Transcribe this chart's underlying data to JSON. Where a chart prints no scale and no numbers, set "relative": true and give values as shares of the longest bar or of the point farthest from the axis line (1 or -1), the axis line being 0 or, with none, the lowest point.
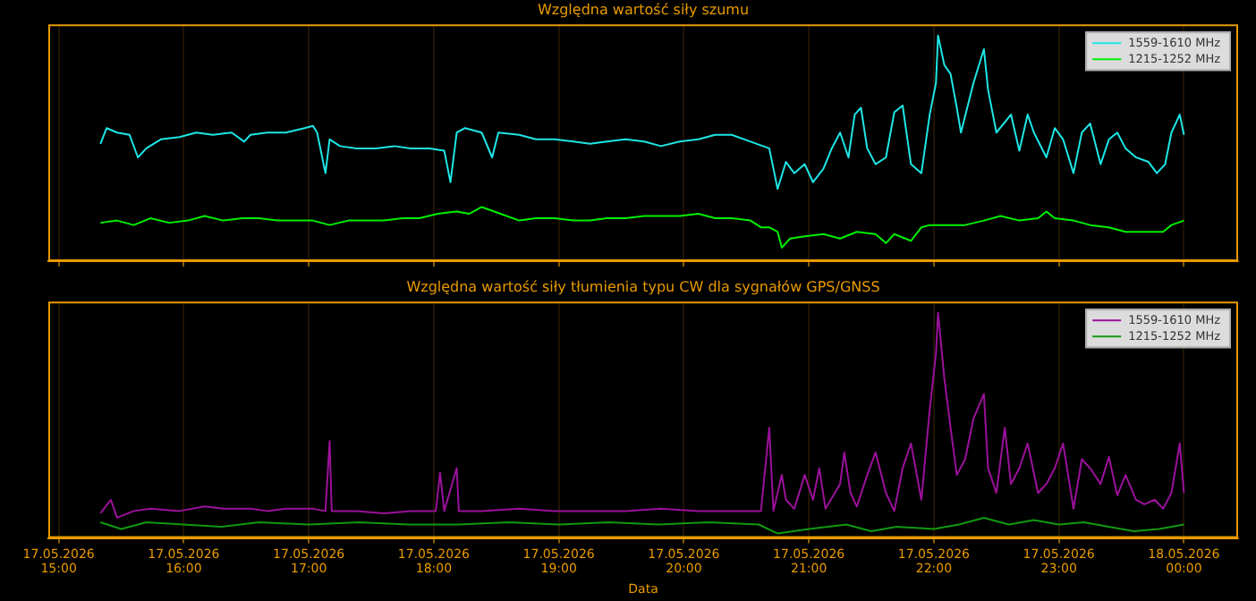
{
  "chart_data": [
    {
      "type": "line",
      "title": "Względna wartość siły szumu",
      "relative": true,
      "xlim": [
        "2026-05-17T14:55",
        "2026-05-18T00:26"
      ],
      "xticks": [
        {
          "value": "2026-05-17T15:00",
          "label": null
        },
        {
          "value": "2026-05-17T16:00",
          "label": null
        },
        {
          "value": "2026-05-17T17:00",
          "label": null
        },
        {
          "value": "2026-05-17T18:00",
          "label": null
        },
        {
          "value": "2026-05-17T19:00",
          "label": null
        },
        {
          "value": "2026-05-17T20:00",
          "label": null
        },
        {
          "value": "2026-05-17T21:00",
          "label": null
        },
        {
          "value": "2026-05-17T22:00",
          "label": null
        },
        {
          "value": "2026-05-17T23:00",
          "label": null
        },
        {
          "value": "2026-05-18T00:00",
          "label": null
        }
      ],
      "grid": "x",
      "legend": "top right",
      "tick_labels": false,
      "marker": "none",
      "series": [
        {
          "name": "1559-1610 MHz",
          "color": "#1ee6e6",
          "x": [
            "2026-05-17T15:20",
            "2026-05-17T15:23",
            "2026-05-17T15:28",
            "2026-05-17T15:34",
            "2026-05-17T15:38",
            "2026-05-17T15:42",
            "2026-05-17T15:49",
            "2026-05-17T15:58",
            "2026-05-17T16:06",
            "2026-05-17T16:14",
            "2026-05-17T16:23",
            "2026-05-17T16:29",
            "2026-05-17T16:32",
            "2026-05-17T16:40",
            "2026-05-17T16:49",
            "2026-05-17T16:58",
            "2026-05-17T17:02",
            "2026-05-17T17:04",
            "2026-05-17T17:08",
            "2026-05-17T17:10",
            "2026-05-17T17:15",
            "2026-05-17T17:23",
            "2026-05-17T17:32",
            "2026-05-17T17:41",
            "2026-05-17T17:49",
            "2026-05-17T17:58",
            "2026-05-17T18:05",
            "2026-05-17T18:08",
            "2026-05-17T18:11",
            "2026-05-17T18:15",
            "2026-05-17T18:23",
            "2026-05-17T18:28",
            "2026-05-17T18:31",
            "2026-05-17T18:41",
            "2026-05-17T18:49",
            "2026-05-17T18:58",
            "2026-05-17T19:07",
            "2026-05-17T19:15",
            "2026-05-17T19:23",
            "2026-05-17T19:32",
            "2026-05-17T19:41",
            "2026-05-17T19:49",
            "2026-05-17T19:58",
            "2026-05-17T20:07",
            "2026-05-17T20:15",
            "2026-05-17T20:23",
            "2026-05-17T20:32",
            "2026-05-17T20:41",
            "2026-05-17T20:45",
            "2026-05-17T20:49",
            "2026-05-17T20:53",
            "2026-05-17T20:58",
            "2026-05-17T21:02",
            "2026-05-17T21:07",
            "2026-05-17T21:11",
            "2026-05-17T21:15",
            "2026-05-17T21:19",
            "2026-05-17T21:22",
            "2026-05-17T21:25",
            "2026-05-17T21:28",
            "2026-05-17T21:32",
            "2026-05-17T21:37",
            "2026-05-17T21:41",
            "2026-05-17T21:45",
            "2026-05-17T21:49",
            "2026-05-17T21:54",
            "2026-05-17T21:58",
            "2026-05-17T22:01",
            "2026-05-17T22:02",
            "2026-05-17T22:05",
            "2026-05-17T22:08",
            "2026-05-17T22:11",
            "2026-05-17T22:13",
            "2026-05-17T22:19",
            "2026-05-17T22:24",
            "2026-05-17T22:26",
            "2026-05-17T22:30",
            "2026-05-17T22:37",
            "2026-05-17T22:41",
            "2026-05-17T22:45",
            "2026-05-17T22:48",
            "2026-05-17T22:54",
            "2026-05-17T22:58",
            "2026-05-17T23:02",
            "2026-05-17T23:07",
            "2026-05-17T23:11",
            "2026-05-17T23:15",
            "2026-05-17T23:20",
            "2026-05-17T23:24",
            "2026-05-17T23:28",
            "2026-05-17T23:32",
            "2026-05-17T23:37",
            "2026-05-17T23:43",
            "2026-05-17T23:47",
            "2026-05-17T23:51",
            "2026-05-17T23:54",
            "2026-05-17T23:58",
            "2026-05-18T00:00"
          ],
          "values": [
            0.52,
            0.59,
            0.57,
            0.56,
            0.46,
            0.5,
            0.54,
            0.55,
            0.57,
            0.56,
            0.57,
            0.53,
            0.56,
            0.57,
            0.57,
            0.59,
            0.6,
            0.57,
            0.39,
            0.54,
            0.51,
            0.5,
            0.5,
            0.51,
            0.5,
            0.5,
            0.49,
            0.35,
            0.57,
            0.59,
            0.57,
            0.46,
            0.57,
            0.56,
            0.54,
            0.54,
            0.53,
            0.52,
            0.53,
            0.54,
            0.53,
            0.51,
            0.53,
            0.54,
            0.56,
            0.56,
            0.53,
            0.5,
            0.32,
            0.44,
            0.39,
            0.43,
            0.35,
            0.41,
            0.5,
            0.57,
            0.46,
            0.65,
            0.68,
            0.5,
            0.43,
            0.46,
            0.66,
            0.69,
            0.43,
            0.39,
            0.65,
            0.79,
            1,
            0.87,
            0.83,
            0.68,
            0.57,
            0.79,
            0.94,
            0.76,
            0.57,
            0.65,
            0.49,
            0.65,
            0.57,
            0.46,
            0.59,
            0.54,
            0.39,
            0.57,
            0.61,
            0.43,
            0.54,
            0.57,
            0.5,
            0.46,
            0.44,
            0.39,
            0.43,
            0.57,
            0.65,
            0.56
          ]
        },
        {
          "name": "1215-1252 MHz",
          "color": "#00f000",
          "x": [
            "2026-05-17T15:20",
            "2026-05-17T15:28",
            "2026-05-17T15:36",
            "2026-05-17T15:44",
            "2026-05-17T15:53",
            "2026-05-17T16:02",
            "2026-05-17T16:10",
            "2026-05-17T16:19",
            "2026-05-17T16:28",
            "2026-05-17T16:36",
            "2026-05-17T16:45",
            "2026-05-17T16:53",
            "2026-05-17T17:02",
            "2026-05-17T17:10",
            "2026-05-17T17:19",
            "2026-05-17T17:28",
            "2026-05-17T17:36",
            "2026-05-17T17:45",
            "2026-05-17T17:53",
            "2026-05-17T18:02",
            "2026-05-17T18:11",
            "2026-05-17T18:17",
            "2026-05-17T18:23",
            "2026-05-17T18:32",
            "2026-05-17T18:41",
            "2026-05-17T18:49",
            "2026-05-17T18:58",
            "2026-05-17T19:07",
            "2026-05-17T19:15",
            "2026-05-17T19:23",
            "2026-05-17T19:32",
            "2026-05-17T19:41",
            "2026-05-17T19:49",
            "2026-05-17T19:58",
            "2026-05-17T20:07",
            "2026-05-17T20:15",
            "2026-05-17T20:23",
            "2026-05-17T20:32",
            "2026-05-17T20:37",
            "2026-05-17T20:41",
            "2026-05-17T20:45",
            "2026-05-17T20:47",
            "2026-05-17T20:51",
            "2026-05-17T20:58",
            "2026-05-17T21:07",
            "2026-05-17T21:15",
            "2026-05-17T21:23",
            "2026-05-17T21:32",
            "2026-05-17T21:37",
            "2026-05-17T21:41",
            "2026-05-17T21:49",
            "2026-05-17T21:54",
            "2026-05-17T21:58",
            "2026-05-17T22:07",
            "2026-05-17T22:15",
            "2026-05-17T22:24",
            "2026-05-17T22:32",
            "2026-05-17T22:41",
            "2026-05-17T22:50",
            "2026-05-17T22:54",
            "2026-05-17T22:58",
            "2026-05-17T23:07",
            "2026-05-17T23:15",
            "2026-05-17T23:24",
            "2026-05-17T23:32",
            "2026-05-17T23:41",
            "2026-05-17T23:50",
            "2026-05-17T23:54",
            "2026-05-18T00:00"
          ],
          "values": [
            0.17,
            0.18,
            0.16,
            0.19,
            0.17,
            0.18,
            0.2,
            0.18,
            0.19,
            0.19,
            0.18,
            0.18,
            0.18,
            0.16,
            0.18,
            0.18,
            0.18,
            0.19,
            0.19,
            0.21,
            0.22,
            0.21,
            0.24,
            0.21,
            0.18,
            0.19,
            0.19,
            0.18,
            0.18,
            0.19,
            0.19,
            0.2,
            0.2,
            0.2,
            0.21,
            0.19,
            0.19,
            0.18,
            0.15,
            0.15,
            0.13,
            0.06,
            0.1,
            0.11,
            0.12,
            0.1,
            0.13,
            0.12,
            0.08,
            0.12,
            0.09,
            0.15,
            0.16,
            0.16,
            0.16,
            0.18,
            0.2,
            0.18,
            0.19,
            0.22,
            0.19,
            0.18,
            0.16,
            0.15,
            0.13,
            0.13,
            0.13,
            0.16,
            0.18
          ]
        }
      ]
    },
    {
      "type": "line",
      "title": "Względna wartość siły tłumienia typu CW dla sygnałów GPS/GNSS",
      "xlabel": "Data",
      "relative": true,
      "xlim": [
        "2026-05-17T14:55",
        "2026-05-18T00:26"
      ],
      "xticks": [
        {
          "value": "2026-05-17T15:00",
          "label": "17.05.2026 15:00"
        },
        {
          "value": "2026-05-17T16:00",
          "label": "17.05.2026 16:00"
        },
        {
          "value": "2026-05-17T17:00",
          "label": "17.05.2026 17:00"
        },
        {
          "value": "2026-05-17T18:00",
          "label": "17.05.2026 18:00"
        },
        {
          "value": "2026-05-17T19:00",
          "label": "17.05.2026 19:00"
        },
        {
          "value": "2026-05-17T20:00",
          "label": "17.05.2026 20:00"
        },
        {
          "value": "2026-05-17T21:00",
          "label": "17.05.2026 21:00"
        },
        {
          "value": "2026-05-17T22:00",
          "label": "17.05.2026 22:00"
        },
        {
          "value": "2026-05-17T23:00",
          "label": "17.05.2026 23:00"
        },
        {
          "value": "2026-05-18T00:00",
          "label": "18.05.2026 00:00"
        }
      ],
      "grid": "x",
      "legend": "top right",
      "tick_labels": "x",
      "marker": "none",
      "series": [
        {
          "name": "1559-1610 MHz",
          "color": "#9b119b",
          "x": [
            "2026-05-17T15:20",
            "2026-05-17T15:25",
            "2026-05-17T15:28",
            "2026-05-17T15:36",
            "2026-05-17T15:44",
            "2026-05-17T15:58",
            "2026-05-17T16:10",
            "2026-05-17T16:19",
            "2026-05-17T16:32",
            "2026-05-17T16:40",
            "2026-05-17T16:49",
            "2026-05-17T17:02",
            "2026-05-17T17:08",
            "2026-05-17T17:10",
            "2026-05-17T17:11",
            "2026-05-17T17:23",
            "2026-05-17T17:36",
            "2026-05-17T17:49",
            "2026-05-17T18:01",
            "2026-05-17T18:03",
            "2026-05-17T18:05",
            "2026-05-17T18:11",
            "2026-05-17T18:12",
            "2026-05-17T18:23",
            "2026-05-17T18:41",
            "2026-05-17T18:58",
            "2026-05-17T19:15",
            "2026-05-17T19:32",
            "2026-05-17T19:49",
            "2026-05-17T20:07",
            "2026-05-17T20:23",
            "2026-05-17T20:37",
            "2026-05-17T20:41",
            "2026-05-17T20:43",
            "2026-05-17T20:47",
            "2026-05-17T20:49",
            "2026-05-17T20:53",
            "2026-05-17T20:58",
            "2026-05-17T21:02",
            "2026-05-17T21:05",
            "2026-05-17T21:08",
            "2026-05-17T21:15",
            "2026-05-17T21:17",
            "2026-05-17T21:20",
            "2026-05-17T21:23",
            "2026-05-17T21:28",
            "2026-05-17T21:32",
            "2026-05-17T21:37",
            "2026-05-17T21:41",
            "2026-05-17T21:45",
            "2026-05-17T21:49",
            "2026-05-17T21:54",
            "2026-05-17T21:58",
            "2026-05-17T22:01",
            "2026-05-17T22:02",
            "2026-05-17T22:05",
            "2026-05-17T22:08",
            "2026-05-17T22:11",
            "2026-05-17T22:15",
            "2026-05-17T22:19",
            "2026-05-17T22:24",
            "2026-05-17T22:26",
            "2026-05-17T22:30",
            "2026-05-17T22:34",
            "2026-05-17T22:37",
            "2026-05-17T22:41",
            "2026-05-17T22:45",
            "2026-05-17T22:50",
            "2026-05-17T22:54",
            "2026-05-17T22:58",
            "2026-05-17T23:02",
            "2026-05-17T23:07",
            "2026-05-17T23:11",
            "2026-05-17T23:15",
            "2026-05-17T23:20",
            "2026-05-17T23:24",
            "2026-05-17T23:28",
            "2026-05-17T23:32",
            "2026-05-17T23:37",
            "2026-05-17T23:41",
            "2026-05-17T23:46",
            "2026-05-17T23:50",
            "2026-05-17T23:54",
            "2026-05-17T23:58",
            "2026-05-18T00:00"
          ],
          "values": [
            0.11,
            0.17,
            0.09,
            0.12,
            0.13,
            0.12,
            0.14,
            0.13,
            0.13,
            0.12,
            0.13,
            0.13,
            0.12,
            0.43,
            0.12,
            0.12,
            0.11,
            0.12,
            0.12,
            0.29,
            0.12,
            0.31,
            0.12,
            0.12,
            0.13,
            0.12,
            0.12,
            0.12,
            0.13,
            0.12,
            0.12,
            0.12,
            0.49,
            0.12,
            0.28,
            0.17,
            0.13,
            0.28,
            0.17,
            0.31,
            0.13,
            0.24,
            0.38,
            0.2,
            0.14,
            0.28,
            0.38,
            0.2,
            0.12,
            0.31,
            0.42,
            0.17,
            0.57,
            0.82,
            1,
            0.71,
            0.49,
            0.28,
            0.35,
            0.53,
            0.64,
            0.31,
            0.2,
            0.49,
            0.24,
            0.31,
            0.42,
            0.2,
            0.24,
            0.31,
            0.42,
            0.13,
            0.35,
            0.31,
            0.24,
            0.36,
            0.19,
            0.28,
            0.17,
            0.15,
            0.17,
            0.13,
            0.2,
            0.42,
            0.2
          ]
        },
        {
          "name": "1215-1252 MHz",
          "color": "#119911",
          "x": [
            "2026-05-17T15:20",
            "2026-05-17T15:30",
            "2026-05-17T15:42",
            "2026-05-17T16:00",
            "2026-05-17T16:18",
            "2026-05-17T16:36",
            "2026-05-17T17:00",
            "2026-05-17T17:24",
            "2026-05-17T17:48",
            "2026-05-17T18:12",
            "2026-05-17T18:36",
            "2026-05-17T19:00",
            "2026-05-17T19:24",
            "2026-05-17T19:48",
            "2026-05-17T20:12",
            "2026-05-17T20:36",
            "2026-05-17T20:45",
            "2026-05-17T21:00",
            "2026-05-17T21:18",
            "2026-05-17T21:30",
            "2026-05-17T21:42",
            "2026-05-17T22:00",
            "2026-05-17T22:12",
            "2026-05-17T22:24",
            "2026-05-17T22:36",
            "2026-05-17T22:48",
            "2026-05-17T23:00",
            "2026-05-17T23:12",
            "2026-05-17T23:24",
            "2026-05-17T23:36",
            "2026-05-17T23:48",
            "2026-05-18T00:00"
          ],
          "values": [
            0.07,
            0.04,
            0.07,
            0.06,
            0.05,
            0.07,
            0.06,
            0.07,
            0.06,
            0.06,
            0.07,
            0.06,
            0.07,
            0.06,
            0.07,
            0.06,
            0.02,
            0.04,
            0.06,
            0.03,
            0.05,
            0.04,
            0.06,
            0.09,
            0.06,
            0.08,
            0.06,
            0.07,
            0.05,
            0.03,
            0.04,
            0.06
          ]
        }
      ]
    }
  ]
}
